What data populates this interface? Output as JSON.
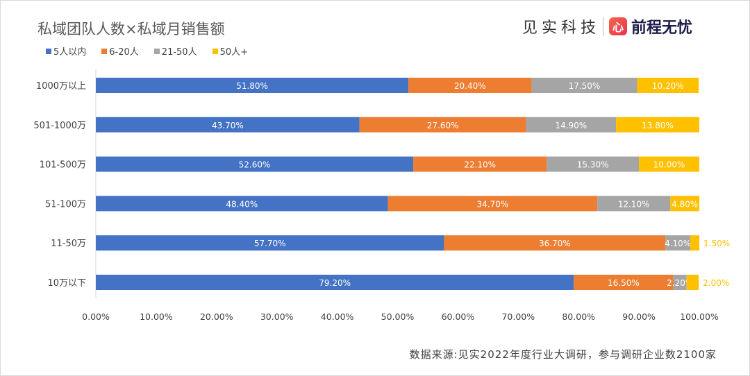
{
  "chart_data": {
    "type": "bar",
    "orientation": "horizontal",
    "stacked": true,
    "title": "私域团队人数×私域月销售额",
    "categories": [
      "1000万以上",
      "501-1000万",
      "101-500万",
      "51-100万",
      "11-50万",
      "10万以下"
    ],
    "series": [
      {
        "name": "5人以内",
        "color": "#4472c4",
        "values": [
          51.8,
          43.7,
          52.6,
          48.4,
          57.7,
          79.2
        ]
      },
      {
        "name": "6-20人",
        "color": "#ed7d31",
        "values": [
          20.4,
          27.6,
          22.1,
          34.7,
          36.7,
          16.5
        ]
      },
      {
        "name": "21-50人",
        "color": "#a5a5a5",
        "values": [
          17.5,
          14.9,
          15.3,
          12.1,
          4.1,
          2.2
        ]
      },
      {
        "name": "50人+",
        "color": "#ffc000",
        "values": [
          10.2,
          13.8,
          10.0,
          4.8,
          1.5,
          2.0
        ]
      }
    ],
    "xlim": [
      0,
      100
    ],
    "xticks": [
      "0.00%",
      "10.00%",
      "20.00%",
      "30.00%",
      "40.00%",
      "50.00%",
      "60.00%",
      "70.00%",
      "80.00%",
      "90.00%",
      "100.00%"
    ],
    "legend": "top-left",
    "grid": false
  },
  "brand": {
    "left": "见实科技",
    "logo_mark": "心",
    "right": "前程无忧"
  },
  "source": "数据来源:见实2022年度行业大调研，参与调研企业数2100家"
}
